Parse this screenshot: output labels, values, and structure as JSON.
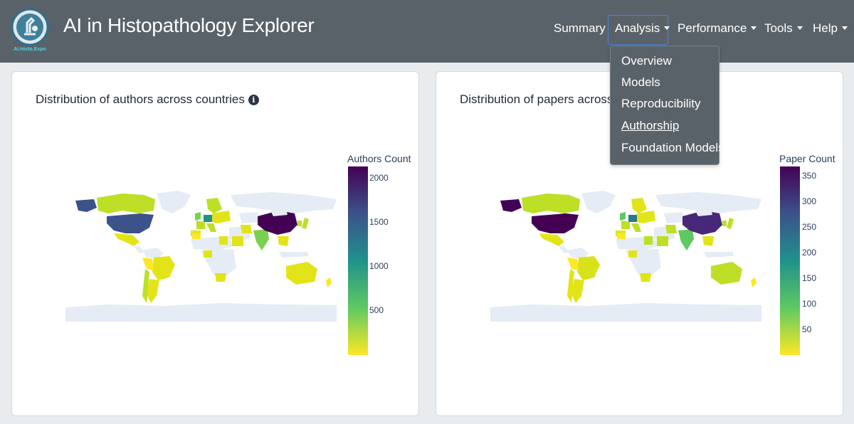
{
  "app": {
    "logo_text": "AI.Histo.Expo",
    "title": "AI in Histopathology Explorer"
  },
  "nav": {
    "summary": "Summary",
    "analysis": "Analysis",
    "performance": "Performance",
    "tools": "Tools",
    "help": "Help"
  },
  "analysis_menu": {
    "overview": "Overview",
    "models": "Models",
    "reproducibility": "Reproducibility",
    "authorship": "Authorship",
    "foundation_models": "Foundation Models"
  },
  "left_card": {
    "title": "Distribution of authors across countries",
    "info_icon": "info-circle-icon",
    "colorbar_title": "Authors Count",
    "ticks": [
      "2000",
      "1500",
      "1000",
      "500"
    ]
  },
  "right_card": {
    "title": "Distribution of papers across co",
    "colorbar_title": "Paper Count",
    "ticks": [
      "350",
      "300",
      "250",
      "200",
      "150",
      "100",
      "50"
    ]
  },
  "colors": {
    "navbar": "#5a6269",
    "land_no_data": "#e5ecf6",
    "viridis_high": "#440154",
    "viridis_low": "#fde725"
  },
  "chart_data": [
    {
      "type": "choropleth",
      "title": "Distribution of authors across countries",
      "colorbar_title": "Authors Count",
      "colorscale": "viridis",
      "range": [
        0,
        2150
      ],
      "tick_values": [
        500,
        1000,
        1500,
        2000
      ],
      "values": {
        "China": 2150,
        "United States": 1300,
        "Germany": 950,
        "India": 450,
        "Canada": 250,
        "United Kingdom": 350,
        "Australia": 150,
        "Brazil": 100,
        "Japan": 150,
        "South Korea": 200
      }
    },
    {
      "type": "choropleth",
      "title": "Distribution of papers across co",
      "colorbar_title": "Paper Count",
      "colorscale": "viridis",
      "range": [
        0,
        370
      ],
      "tick_values": [
        50,
        100,
        150,
        200,
        250,
        300,
        350
      ],
      "values": {
        "United States": 360,
        "China": 330,
        "India": 90,
        "Germany": 180,
        "Canada": 50,
        "United Kingdom": 100,
        "Australia": 50,
        "Brazil": 20,
        "Japan": 30
      }
    }
  ]
}
